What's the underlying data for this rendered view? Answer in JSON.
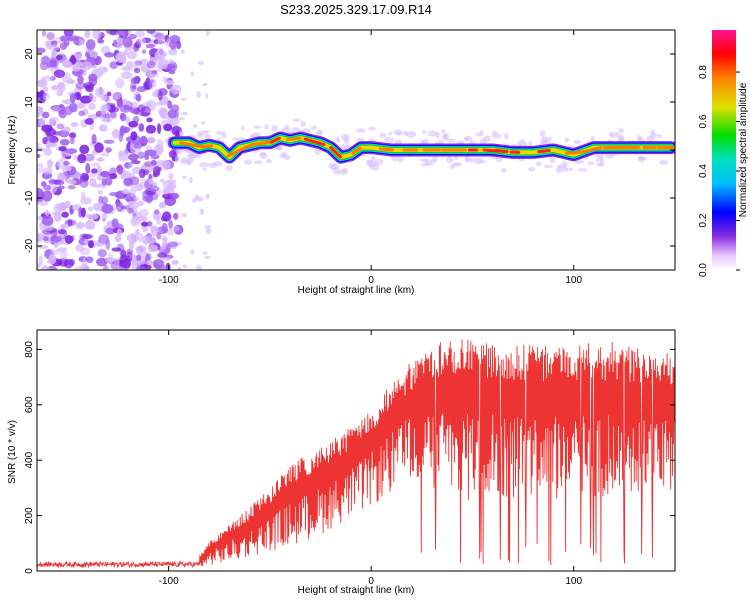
{
  "title": "S233.2025.329.17.09.R14",
  "chart_data": [
    {
      "type": "heatmap",
      "name": "spectrogram",
      "xlabel": "Height of straight line (km)",
      "ylabel": "Frequency (Hz)",
      "xlim": [
        -165,
        150
      ],
      "ylim": [
        -25,
        25
      ],
      "xticks": [
        -100,
        0,
        100
      ],
      "yticks": [
        -20,
        -10,
        0,
        10,
        20
      ],
      "noise_region": {
        "x_range": [
          -165,
          -95
        ],
        "y_range": [
          -25,
          25
        ]
      },
      "sparse_region": {
        "x_range": [
          -95,
          -80
        ]
      },
      "ridge": {
        "x": [
          -97,
          -90,
          -85,
          -80,
          -75,
          -70,
          -65,
          -60,
          -55,
          -50,
          -45,
          -40,
          -35,
          -30,
          -25,
          -20,
          -15,
          -10,
          -5,
          0,
          10,
          20,
          30,
          40,
          50,
          60,
          70,
          80,
          90,
          100,
          110,
          120,
          130,
          140,
          148
        ],
        "y": [
          1.5,
          1.5,
          0.5,
          1.0,
          0.5,
          -1.5,
          0.5,
          1.0,
          1.5,
          1.5,
          2.5,
          2.0,
          2.5,
          2.0,
          1.5,
          0.5,
          -1.5,
          -1.0,
          0.5,
          0.5,
          0.0,
          0.0,
          0.0,
          0.0,
          0.0,
          0.0,
          -0.5,
          -0.5,
          0.0,
          -1.0,
          0.5,
          0.5,
          0.5,
          0.5,
          0.5
        ]
      },
      "colorbar": {
        "label": "Normalized spectral amplitude",
        "range": [
          0,
          0.97
        ],
        "ticks": [
          "0.0",
          "0.2",
          "0.4",
          "0.6",
          "0.8"
        ],
        "tick_values": [
          0,
          0.2,
          0.4,
          0.6,
          0.8
        ]
      }
    },
    {
      "type": "line",
      "name": "snr",
      "xlabel": "Height of straight line (km)",
      "ylabel": "SNR (10 * v/v)",
      "xlim": [
        -165,
        150
      ],
      "ylim": [
        0,
        870
      ],
      "xticks": [
        -100,
        0,
        100
      ],
      "yticks": [
        0,
        200,
        400,
        600,
        800
      ],
      "color": "#ee3333",
      "envelope": {
        "x": [
          -165,
          -100,
          -90,
          -85,
          -80,
          -70,
          -60,
          -50,
          -40,
          -30,
          -20,
          -10,
          0,
          10,
          20,
          30,
          40,
          50,
          60,
          80,
          100,
          120,
          140,
          150
        ],
        "lower": [
          5,
          5,
          5,
          10,
          20,
          30,
          50,
          70,
          90,
          110,
          150,
          190,
          230,
          280,
          330,
          300,
          230,
          250,
          260,
          260,
          260,
          260,
          270,
          280
        ],
        "upper": [
          30,
          30,
          35,
          55,
          110,
          170,
          230,
          300,
          380,
          430,
          470,
          520,
          590,
          680,
          760,
          830,
          840,
          840,
          820,
          820,
          830,
          830,
          800,
          780
        ]
      }
    }
  ]
}
